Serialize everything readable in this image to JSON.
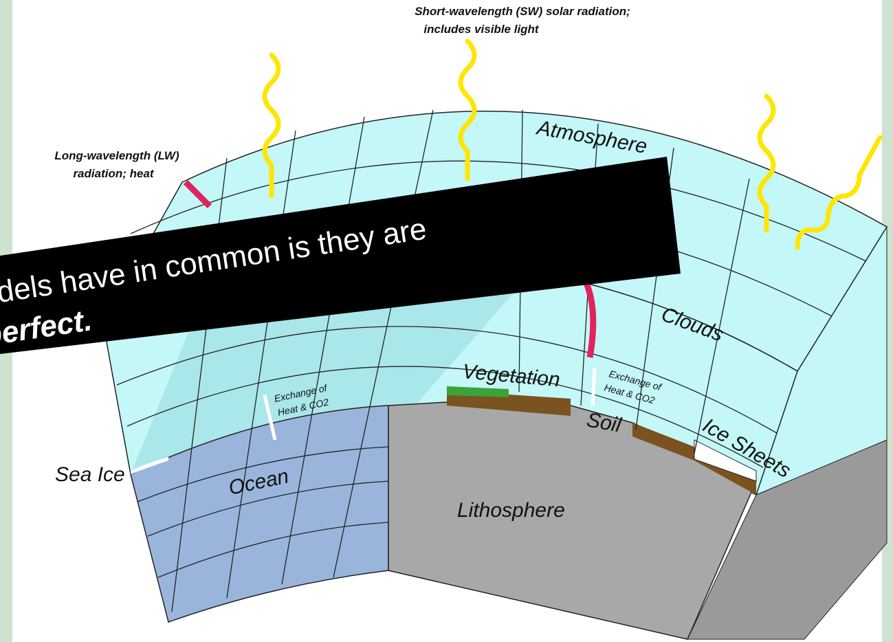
{
  "labels": {
    "sw_line1": "Short-wavelength (SW) solar radiation;",
    "sw_line2": "includes visible light",
    "lw_line1": "Long-wavelength (LW)",
    "lw_line2": "radiation; heat",
    "atmosphere": "Atmosphere",
    "clouds": "Clouds",
    "vegetation": "Vegetation",
    "exchange_left": [
      "Exchange of",
      "Heat & CO2"
    ],
    "exchange_right": [
      "Exchange of",
      "Heat & CO2"
    ],
    "soil": "Soil",
    "ice_sheets": "Ice Sheets",
    "sea_ice": "Sea Ice",
    "ocean": "Ocean",
    "lithosphere": "Lithosphere"
  },
  "banner": {
    "line1": "dels have in common is they are",
    "line2": "perfect."
  }
}
